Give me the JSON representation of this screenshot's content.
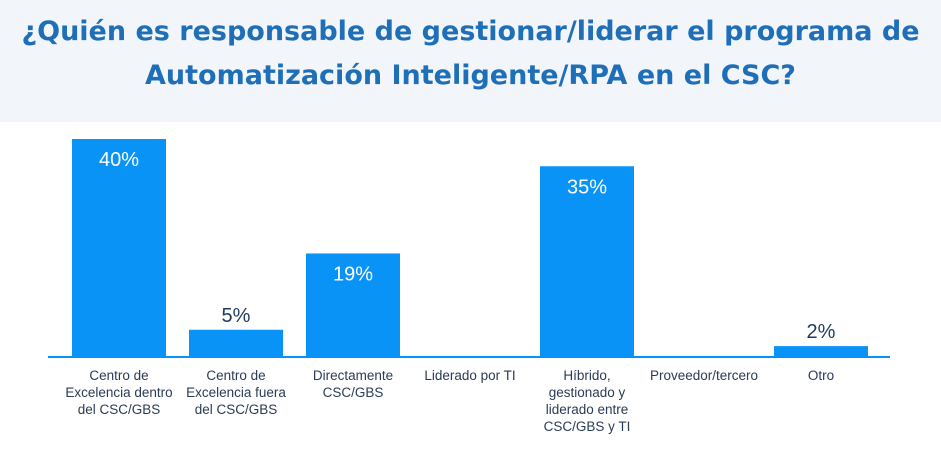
{
  "chart_data": {
    "type": "bar",
    "title_lines": [
      "¿Quién es responsable de gestionar/liderar el programa de",
      "Automatización Inteligente/RPA en el CSC?"
    ],
    "categories": [
      "Centro de\nExcelencia dentro\ndel CSC/GBS",
      "Centro de\nExcelencia fuera\ndel CSC/GBS",
      "Directamente\nCSC/GBS",
      "Liderado por TI",
      "Híbrido,\ngestionado y\nliderado entre\nCSC/GBS y TI",
      "Proveedor/tercero",
      "Otro"
    ],
    "values": [
      40,
      5,
      19,
      0,
      35,
      0,
      2
    ],
    "data_labels": [
      "40%",
      "5%",
      "19%",
      "",
      "35%",
      "",
      "2%"
    ],
    "ylim": [
      0,
      40
    ],
    "grid": false,
    "bar_color": "#0a93f7",
    "title_color": "#1f6fb8"
  }
}
